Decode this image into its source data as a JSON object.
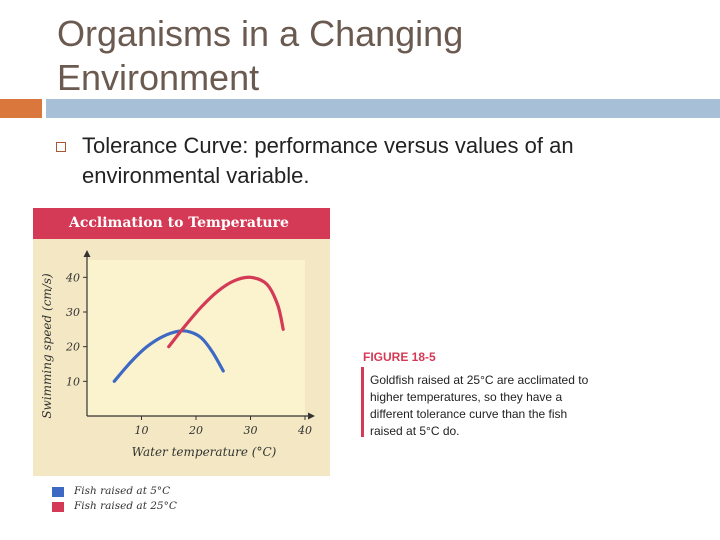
{
  "slide": {
    "title": "Organisms in a Changing Environment",
    "bullet": "Tolerance Curve: performance versus values of an environmental variable."
  },
  "figure": {
    "header": "Acclimation to Temperature",
    "legend": [
      {
        "label": "Fish raised at 5°C",
        "color": "#3d68c4"
      },
      {
        "label": "Fish raised at 25°C",
        "color": "#d43a55"
      }
    ],
    "caption_label": "FIGURE 18-5",
    "caption_text": "Goldfish raised at 25°C are acclimated to higher temperatures, so they have a different tolerance curve than the fish raised at 5°C do."
  },
  "colors": {
    "title": "#6b5a50",
    "accent_orange": "#d9773d",
    "accent_blue": "#a7c0d8",
    "figure_red": "#d43a55",
    "figure_bg": "#f4e8c4",
    "plot_bg": "#fbf3ce"
  },
  "chart_data": {
    "type": "line",
    "title": "Acclimation to Temperature",
    "xlabel": "Water temperature (°C)",
    "ylabel": "Swimming speed (cm/s)",
    "xlim": [
      0,
      40
    ],
    "ylim": [
      0,
      45
    ],
    "xticks": [
      10,
      20,
      30,
      40
    ],
    "yticks": [
      10,
      20,
      30,
      40
    ],
    "series": [
      {
        "name": "Fish raised at 5°C",
        "color": "#3d68c4",
        "x": [
          5,
          8,
          11,
          14,
          17,
          19,
          21,
          23,
          25
        ],
        "y": [
          10,
          15.5,
          20,
          23,
          24.5,
          24.2,
          22.5,
          18.5,
          13
        ]
      },
      {
        "name": "Fish raised at 25°C",
        "color": "#d43a55",
        "x": [
          15,
          18,
          21,
          24,
          27,
          30,
          33,
          35,
          36
        ],
        "y": [
          20,
          26,
          31.5,
          36,
          39,
          40,
          38,
          32,
          25
        ]
      }
    ]
  }
}
